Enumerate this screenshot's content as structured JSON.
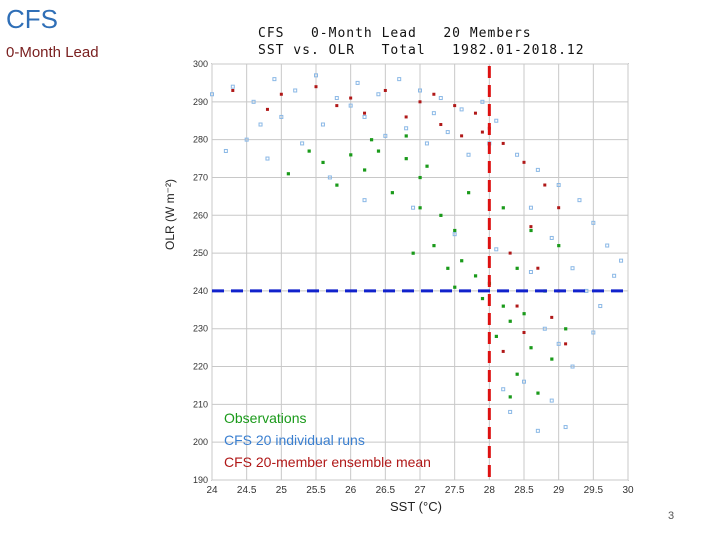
{
  "slide": {
    "title": "CFS",
    "subtitle": "0-Month Lead",
    "page_number": "3"
  },
  "chart_data": {
    "type": "scatter",
    "title_line1": "CFS   0-Month Lead   20 Members",
    "title_line2": "SST vs. OLR   Total   1982.01-2018.12",
    "xlabel": "SST (°C)",
    "ylabel": "OLR (W m⁻²)",
    "xlim": [
      24,
      30
    ],
    "ylim": [
      190,
      300
    ],
    "x_ticks": [
      "24",
      "24.5",
      "25",
      "25.5",
      "26",
      "26.5",
      "27",
      "27.5",
      "28",
      "28.5",
      "29",
      "29.5",
      "30"
    ],
    "y_ticks": [
      "190",
      "200",
      "210",
      "220",
      "230",
      "240",
      "250",
      "260",
      "270",
      "280",
      "290",
      "300"
    ],
    "grid": true,
    "reference_lines": [
      {
        "orientation": "vertical",
        "value": 28,
        "color": "#dd1111",
        "style": "dashed"
      },
      {
        "orientation": "horizontal",
        "value": 240,
        "color": "#1122cc",
        "style": "dashed"
      }
    ],
    "legend_position": "bottom-left",
    "series": [
      {
        "name": "Observations",
        "color": "#1a9a1a",
        "values": [
          [
            25.1,
            271
          ],
          [
            25.6,
            274
          ],
          [
            26.0,
            276
          ],
          [
            26.4,
            277
          ],
          [
            26.8,
            275
          ],
          [
            27.1,
            273
          ],
          [
            26.2,
            272
          ],
          [
            25.8,
            268
          ],
          [
            26.6,
            266
          ],
          [
            27.0,
            262
          ],
          [
            27.3,
            260
          ],
          [
            27.5,
            256
          ],
          [
            27.2,
            252
          ],
          [
            27.6,
            248
          ],
          [
            26.9,
            250
          ],
          [
            27.8,
            244
          ],
          [
            27.4,
            246
          ],
          [
            28.0,
            242
          ],
          [
            27.9,
            238
          ],
          [
            28.2,
            236
          ],
          [
            28.3,
            232
          ],
          [
            28.1,
            228
          ],
          [
            28.5,
            234
          ],
          [
            28.6,
            225
          ],
          [
            28.4,
            218
          ],
          [
            28.7,
            213
          ],
          [
            28.3,
            212
          ],
          [
            28.9,
            222
          ],
          [
            29.1,
            230
          ],
          [
            28.8,
            240
          ],
          [
            29.0,
            252
          ],
          [
            28.6,
            256
          ],
          [
            28.2,
            262
          ],
          [
            27.7,
            266
          ],
          [
            27.0,
            270
          ],
          [
            26.3,
            280
          ],
          [
            26.8,
            281
          ],
          [
            25.4,
            277
          ],
          [
            28.4,
            246
          ],
          [
            27.5,
            241
          ]
        ]
      },
      {
        "name": "CFS 20 individual runs",
        "color": "#8ab8e6",
        "values": [
          [
            24.0,
            292
          ],
          [
            24.3,
            294
          ],
          [
            24.6,
            290
          ],
          [
            24.9,
            296
          ],
          [
            25.2,
            293
          ],
          [
            25.5,
            297
          ],
          [
            25.8,
            291
          ],
          [
            26.1,
            295
          ],
          [
            26.4,
            292
          ],
          [
            26.7,
            296
          ],
          [
            27.0,
            293
          ],
          [
            27.3,
            291
          ],
          [
            27.6,
            288
          ],
          [
            27.9,
            290
          ],
          [
            28.1,
            285
          ],
          [
            25.0,
            286
          ],
          [
            25.6,
            284
          ],
          [
            26.2,
            286
          ],
          [
            26.8,
            283
          ],
          [
            27.4,
            282
          ],
          [
            28.0,
            279
          ],
          [
            28.4,
            276
          ],
          [
            28.7,
            272
          ],
          [
            29.0,
            268
          ],
          [
            29.3,
            264
          ],
          [
            29.5,
            258
          ],
          [
            29.7,
            252
          ],
          [
            28.6,
            262
          ],
          [
            28.9,
            254
          ],
          [
            29.2,
            246
          ],
          [
            29.4,
            240
          ],
          [
            29.6,
            236
          ],
          [
            29.8,
            244
          ],
          [
            28.8,
            230
          ],
          [
            29.0,
            226
          ],
          [
            29.2,
            220
          ],
          [
            28.5,
            216
          ],
          [
            28.3,
            208
          ],
          [
            28.7,
            203
          ],
          [
            28.2,
            214
          ],
          [
            28.9,
            211
          ],
          [
            29.1,
            204
          ],
          [
            24.5,
            280
          ],
          [
            24.2,
            277
          ],
          [
            25.3,
            279
          ],
          [
            26.5,
            281
          ],
          [
            27.1,
            279
          ],
          [
            27.7,
            276
          ],
          [
            24.8,
            275
          ],
          [
            29.9,
            248
          ],
          [
            29.5,
            229
          ],
          [
            28.6,
            245
          ],
          [
            28.1,
            251
          ],
          [
            27.5,
            255
          ],
          [
            26.9,
            262
          ],
          [
            26.2,
            264
          ],
          [
            25.7,
            270
          ],
          [
            24.7,
            284
          ],
          [
            26.0,
            289
          ],
          [
            27.2,
            287
          ]
        ]
      },
      {
        "name": "CFS 20-member ensemble mean",
        "color": "#b01818",
        "values": [
          [
            24.3,
            293
          ],
          [
            25.0,
            292
          ],
          [
            25.5,
            294
          ],
          [
            26.0,
            291
          ],
          [
            26.5,
            293
          ],
          [
            27.0,
            290
          ],
          [
            27.5,
            289
          ],
          [
            27.8,
            287
          ],
          [
            28.0,
            283
          ],
          [
            26.2,
            287
          ],
          [
            26.8,
            286
          ],
          [
            27.3,
            284
          ],
          [
            27.6,
            281
          ],
          [
            28.2,
            279
          ],
          [
            28.5,
            274
          ],
          [
            28.8,
            268
          ],
          [
            29.0,
            262
          ],
          [
            28.6,
            257
          ],
          [
            28.3,
            250
          ],
          [
            28.7,
            246
          ],
          [
            29.0,
            240
          ],
          [
            28.4,
            236
          ],
          [
            28.9,
            233
          ],
          [
            29.1,
            226
          ],
          [
            28.5,
            229
          ],
          [
            28.2,
            224
          ],
          [
            27.9,
            282
          ],
          [
            27.2,
            292
          ],
          [
            25.8,
            289
          ],
          [
            24.8,
            288
          ]
        ]
      }
    ]
  }
}
